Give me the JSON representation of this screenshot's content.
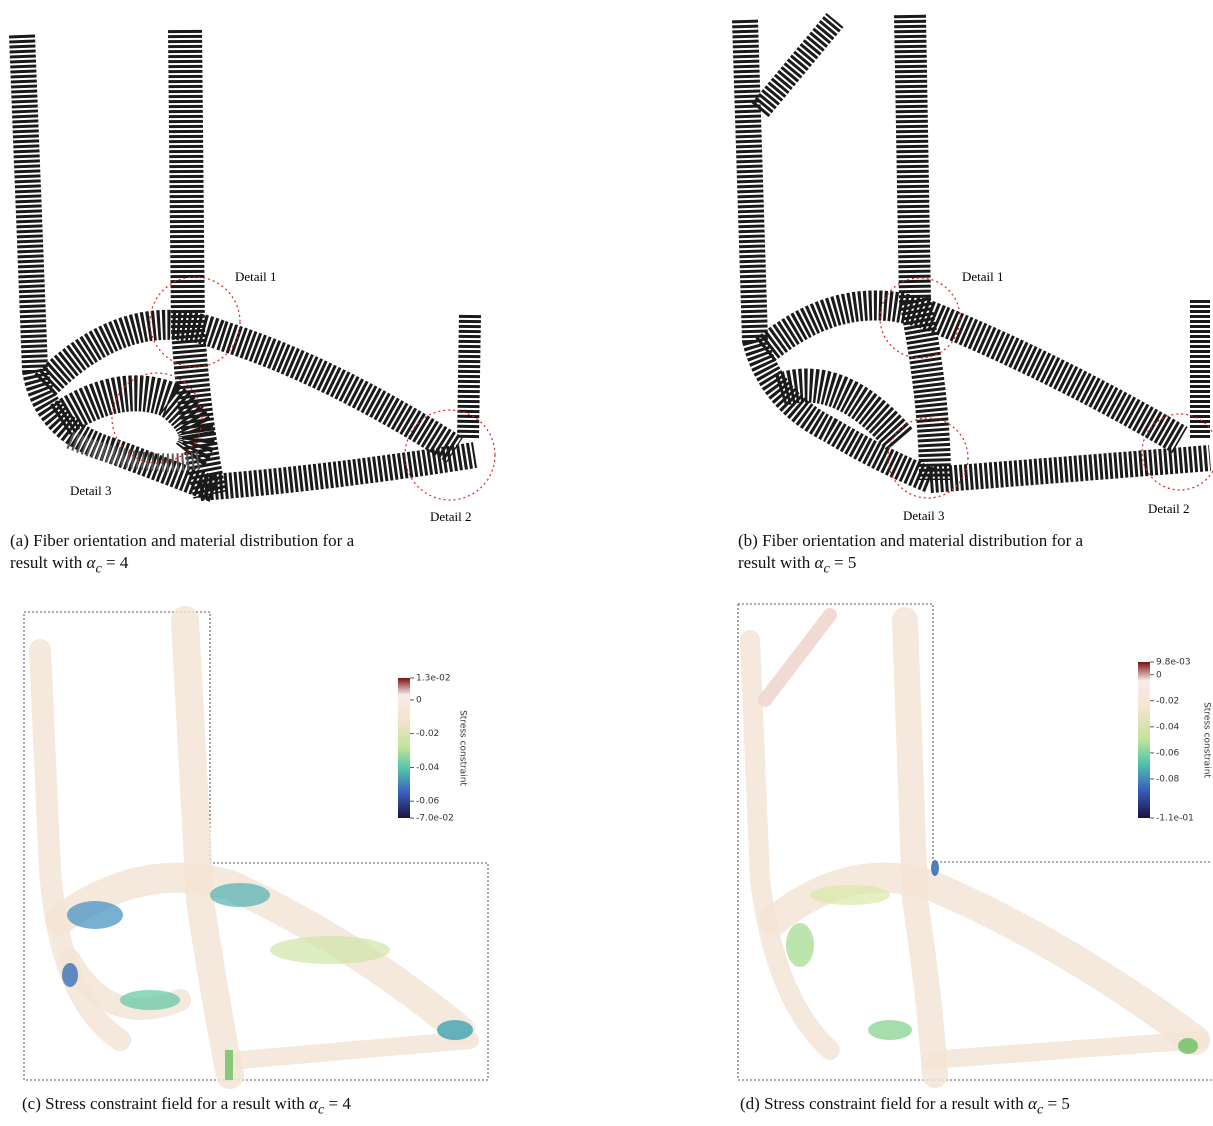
{
  "panel_a": {
    "labels": [
      "Detail 1",
      "Detail 2",
      "Detail 3"
    ],
    "caption": {
      "line1": "(a) Fiber orientation and material distribution for a",
      "line2": "result with ",
      "symbol": "α",
      "subscript": "c",
      "tail": " = 4"
    }
  },
  "panel_b": {
    "labels": [
      "Detail 1",
      "Detail 2",
      "Detail 3"
    ],
    "caption": {
      "line1": "(b) Fiber orientation and material distribution for a",
      "line2": "result with ",
      "symbol": "α",
      "subscript": "c",
      "tail": " = 5"
    }
  },
  "panel_c": {
    "colorbar": {
      "title": "Stress constraint",
      "range": [
        0.013,
        -0.07
      ],
      "ticks": [
        {
          "value": 0.013,
          "label": "1.3e-02"
        },
        0,
        -0.02,
        -0.04,
        -0.06,
        {
          "value": -0.07,
          "label": "-7.0e-02"
        }
      ]
    },
    "caption": {
      "text": "(c) Stress constraint field for a result with ",
      "symbol": "α",
      "subscript": "c",
      "tail": " = 4"
    }
  },
  "panel_d": {
    "colorbar": {
      "title": "Stress constraint",
      "range": [
        0.0098,
        -0.11
      ],
      "ticks": [
        {
          "value": 0.0098,
          "label": "9.8e-03"
        },
        0,
        -0.02,
        -0.04,
        -0.06,
        -0.08,
        {
          "value": -0.11,
          "label": "-1.1e-01"
        }
      ]
    },
    "caption": {
      "text": "(d) Stress constraint field for a result with ",
      "symbol": "α",
      "subscript": "c",
      "tail": " = 5"
    }
  }
}
